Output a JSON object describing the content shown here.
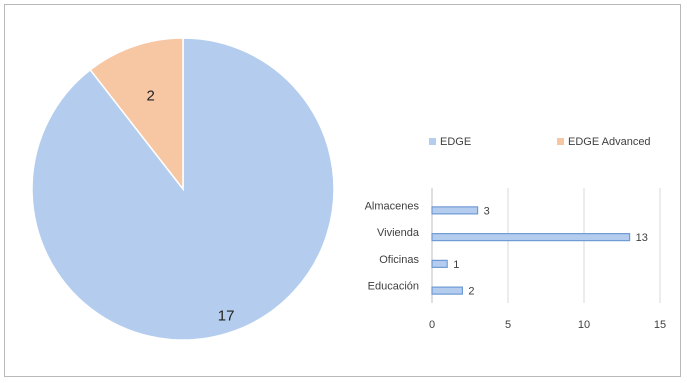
{
  "colors": {
    "edge": "#b4cdee",
    "edge_stroke": "#6f9bd4",
    "advanced": "#f7c6a3",
    "bar": "#6f9bd4",
    "grid": "#d9d9d9",
    "text": "#404040"
  },
  "chart_data": [
    {
      "type": "pie",
      "categories": [
        "EDGE",
        "EDGE Advanced"
      ],
      "values": [
        17,
        2
      ],
      "data_labels": [
        "17",
        "2"
      ],
      "legend": {
        "placement": "right",
        "entries": [
          "EDGE",
          "EDGE Advanced"
        ]
      }
    },
    {
      "type": "bar",
      "orientation": "horizontal",
      "categories": [
        "Almacenes",
        "Vivienda",
        "Oficinas",
        "Educación"
      ],
      "values": [
        3,
        13,
        1,
        2
      ],
      "data_labels": [
        "3",
        "13",
        "1",
        "2"
      ],
      "xlim": [
        0,
        15
      ],
      "xticks": [
        0,
        5,
        10,
        15
      ],
      "xtick_labels": [
        "0",
        "5",
        "10",
        "15"
      ],
      "grid": true
    }
  ]
}
